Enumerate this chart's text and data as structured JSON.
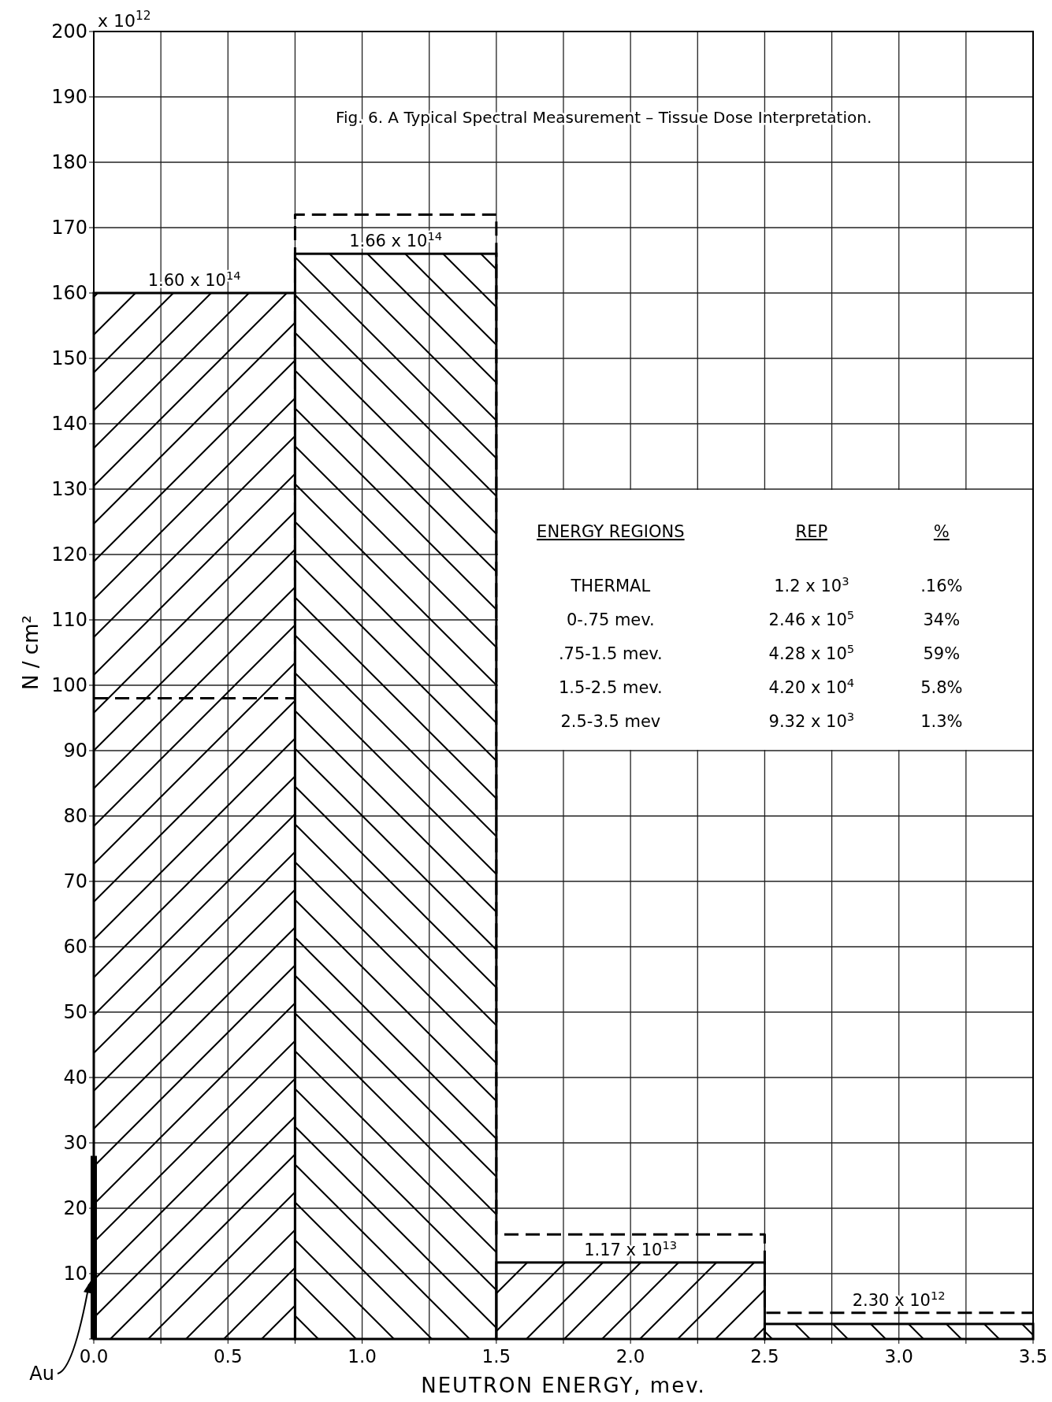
{
  "chart_data": {
    "type": "histogram",
    "title": "Fig. 6. A Typical Spectral Measurement – Tissue Dose Interpretation.",
    "xlabel": "NEUTRON ENERGY, mev.",
    "ylabel": "N / cm²",
    "bins": [
      0,
      0.75,
      1.5,
      2.5,
      3.5
    ],
    "series": [
      {
        "color": "#000000",
        "values": [
          160,
          166,
          11.7,
          2.3
        ]
      },
      {
        "type": "step",
        "color": "#000000",
        "line_style": "dashed",
        "x": [
          0,
          0.75,
          1.5,
          2.5,
          3.5
        ],
        "values": [
          98,
          172,
          16,
          4,
          4
        ]
      },
      {
        "name": "Au",
        "type": "line",
        "color": "#000000",
        "x": [
          0,
          0
        ],
        "values": [
          0,
          28
        ]
      }
    ],
    "xlim": [
      0,
      3.5
    ],
    "xticks": [
      {
        "value": 0,
        "label": "0.0"
      },
      {
        "value": 0.25,
        "label": null
      },
      {
        "value": 0.5,
        "label": "0.5"
      },
      {
        "value": 0.75,
        "label": null
      },
      {
        "value": 1,
        "label": "1.0"
      },
      {
        "value": 1.25,
        "label": null
      },
      {
        "value": 1.5,
        "label": "1.5"
      },
      {
        "value": 1.75,
        "label": null
      },
      {
        "value": 2,
        "label": "2.0"
      },
      {
        "value": 2.25,
        "label": null
      },
      {
        "value": 2.5,
        "label": "2.5"
      },
      {
        "value": 2.75,
        "label": null
      },
      {
        "value": 3,
        "label": "3.0"
      },
      {
        "value": 3.25,
        "label": null
      },
      {
        "value": 3.5,
        "label": "3.5"
      }
    ],
    "ylim": [
      0,
      200
    ],
    "yticks": [
      {
        "value": 0,
        "label": null
      },
      10,
      20,
      30,
      40,
      50,
      60,
      70,
      80,
      90,
      100,
      110,
      120,
      130,
      140,
      150,
      160,
      170,
      180,
      190,
      200
    ],
    "grid": true,
    "annotations": [
      "x 10$^{12}$",
      {
        "text": "1.60 x 10$^{14}$",
        "x": 0.375,
        "y": 160
      },
      {
        "text": "1.66 x 10$^{14}$",
        "x": 1.125,
        "y": 166
      },
      {
        "text": "1.17 x 10$^{13}$",
        "x": 2,
        "y": 11.7
      },
      {
        "text": "2.30 x 10$^{12}$",
        "x": 3,
        "y": 4
      },
      "ENERGY REGIONS",
      "REP",
      "%",
      "THERMAL",
      "1.2  x 10$^{3}$",
      ".16%",
      "0-.75 mev.",
      "2.46 x 10$^{5}$",
      "34%",
      ".75-1.5 mev.",
      "4.28 x 10$^{5}$",
      "59%",
      "1.5-2.5 mev.",
      "4.20 x 10$^{4}$",
      "5.8%",
      "2.5-3.5 mev",
      "9.32 x 10$^{3}$",
      "1.3%"
    ]
  }
}
